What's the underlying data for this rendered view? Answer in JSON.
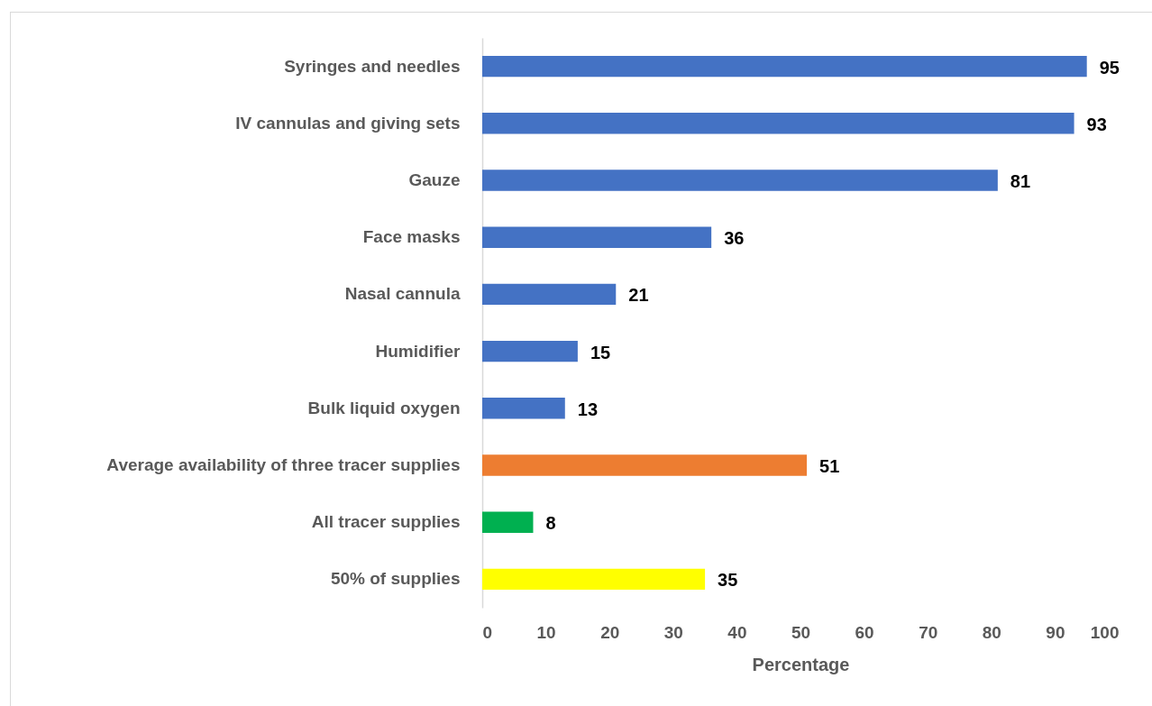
{
  "chart_data": {
    "type": "bar",
    "orientation": "horizontal",
    "categories": [
      "Syringes and needles",
      "IV cannulas and giving sets",
      "Gauze",
      "Face masks",
      "Nasal cannula",
      "Humidifier",
      "Bulk liquid oxygen",
      "Average availability of three tracer supplies",
      "All tracer supplies",
      "50% of supplies"
    ],
    "values": [
      95,
      93,
      81,
      36,
      21,
      15,
      13,
      51,
      8,
      35
    ],
    "colors": [
      "#4472c4",
      "#4472c4",
      "#4472c4",
      "#4472c4",
      "#4472c4",
      "#4472c4",
      "#4472c4",
      "#ed7d31",
      "#00b050",
      "#ffff00"
    ],
    "xlabel": "Percentage",
    "xlim": [
      0,
      100
    ],
    "xticks": [
      0,
      10,
      20,
      30,
      40,
      50,
      60,
      70,
      80,
      90,
      100
    ],
    "data_labels": true,
    "grid": false
  }
}
